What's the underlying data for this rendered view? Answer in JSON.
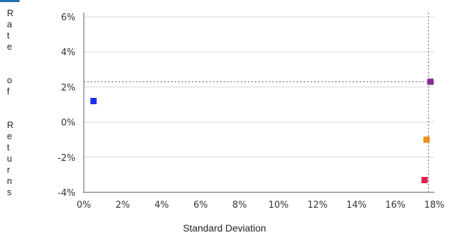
{
  "chart_data": {
    "type": "scatter",
    "title": "",
    "xlabel": "Standard Deviation",
    "ylabel": "Rate of Returns",
    "xlim": [
      0,
      18
    ],
    "ylim": [
      -4,
      6
    ],
    "x_ticks": [
      0,
      2,
      4,
      6,
      8,
      10,
      12,
      14,
      16,
      18
    ],
    "x_tick_labels": [
      "0%",
      "2%",
      "4%",
      "6%",
      "8%",
      "10%",
      "12%",
      "14%",
      "16%",
      "18%"
    ],
    "y_ticks": [
      -4,
      -2,
      0,
      2,
      4,
      6
    ],
    "y_tick_labels": [
      "-4%",
      "-2%",
      "0%",
      "2%",
      "4%",
      "6%"
    ],
    "grid": true,
    "reference_lines": {
      "x": 17.7,
      "y": 2.3
    },
    "points": [
      {
        "x": 0.5,
        "y": 1.2,
        "color": "#1a2ef0"
      },
      {
        "x": 17.8,
        "y": 2.3,
        "color": "#8a2a9a"
      },
      {
        "x": 17.6,
        "y": -1.0,
        "color": "#f0901a"
      },
      {
        "x": 17.5,
        "y": -3.3,
        "color": "#e0204a"
      }
    ]
  },
  "colors": {
    "axis": "#555555",
    "grid": "#d8d8d8",
    "reference": "#777777",
    "accent_tab": "#1f6fb0"
  }
}
